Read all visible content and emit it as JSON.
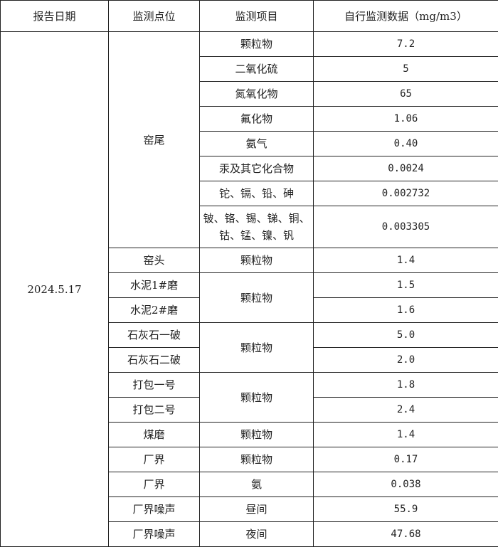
{
  "headers": [
    "报告日期",
    "监测点位",
    "监测项目",
    "自行监测数据（mg/m3）"
  ],
  "date": "2024.5.17",
  "kiln_tail": {
    "point": "窑尾",
    "items": [
      {
        "item": "颗粒物",
        "value": "7.2"
      },
      {
        "item": "二氧化硫",
        "value": "5"
      },
      {
        "item": "氮氧化物",
        "value": "65"
      },
      {
        "item": "氟化物",
        "value": "1.06"
      },
      {
        "item": "氨气",
        "value": "0.40"
      },
      {
        "item": "汞及其它化合物",
        "value": "0.0024"
      },
      {
        "item": "铊、镉、铅、砷",
        "value": "0.002732"
      },
      {
        "item": "铍、铬、锡、锑、铜、钴、锰、镍、钒",
        "value": "0.003305"
      }
    ]
  },
  "rows": [
    {
      "point": "窑头",
      "item": "颗粒物",
      "value": "1.4"
    },
    {
      "point": "水泥1#磨",
      "item": "颗粒物",
      "value": "1.5"
    },
    {
      "point": "水泥2#磨",
      "value": "1.6"
    },
    {
      "point": "石灰石一破",
      "item": "颗粒物",
      "value": "5.0"
    },
    {
      "point": "石灰石二破",
      "value": "2.0"
    },
    {
      "point": "打包一号",
      "item": "颗粒物",
      "value": "1.8"
    },
    {
      "point": "打包二号",
      "value": "2.4"
    },
    {
      "point": "煤磨",
      "item": "颗粒物",
      "value": "1.4"
    },
    {
      "point": "厂界",
      "item": "颗粒物",
      "value": "0.17"
    },
    {
      "point": "厂界",
      "item": "氨",
      "value": "0.038"
    },
    {
      "point": "厂界噪声",
      "item": "昼间",
      "value": "55.9"
    },
    {
      "point": "厂界噪声",
      "item": "夜间",
      "value": "47.68"
    }
  ]
}
